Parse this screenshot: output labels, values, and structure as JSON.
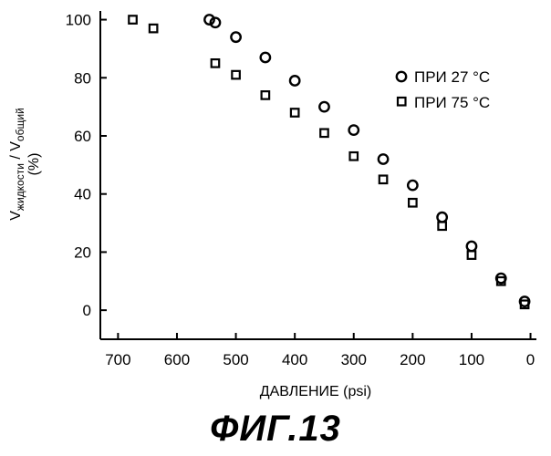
{
  "chart_data": {
    "type": "scatter",
    "xlabel": "ДАВЛЕНИЕ (psi)",
    "ylabel": {
      "base1": "V",
      "sub1": "жидкости",
      "sep": " / ",
      "base2": "V",
      "sub2": "общий",
      "unit": "(%)"
    },
    "xlim": [
      730,
      -10
    ],
    "ylim": [
      -10,
      103
    ],
    "x_ticks": [
      700,
      600,
      500,
      400,
      300,
      200,
      100,
      0
    ],
    "y_ticks": [
      0,
      20,
      40,
      60,
      80,
      100
    ],
    "legend_position": "right",
    "series": [
      {
        "name": "ПРИ 27 °C",
        "marker": "circle",
        "points": [
          [
            545,
            100
          ],
          [
            535,
            99
          ],
          [
            500,
            94
          ],
          [
            450,
            87
          ],
          [
            400,
            79
          ],
          [
            350,
            70
          ],
          [
            300,
            62
          ],
          [
            250,
            52
          ],
          [
            200,
            43
          ],
          [
            150,
            32
          ],
          [
            100,
            22
          ],
          [
            50,
            11
          ],
          [
            10,
            3
          ]
        ]
      },
      {
        "name": "ПРИ 75 °C",
        "marker": "square",
        "points": [
          [
            675,
            100
          ],
          [
            640,
            97
          ],
          [
            535,
            85
          ],
          [
            500,
            81
          ],
          [
            450,
            74
          ],
          [
            400,
            68
          ],
          [
            350,
            61
          ],
          [
            300,
            53
          ],
          [
            250,
            45
          ],
          [
            200,
            37
          ],
          [
            150,
            29
          ],
          [
            100,
            19
          ],
          [
            50,
            10
          ],
          [
            10,
            2
          ]
        ]
      }
    ]
  },
  "figure_caption": "ФИГ.13"
}
